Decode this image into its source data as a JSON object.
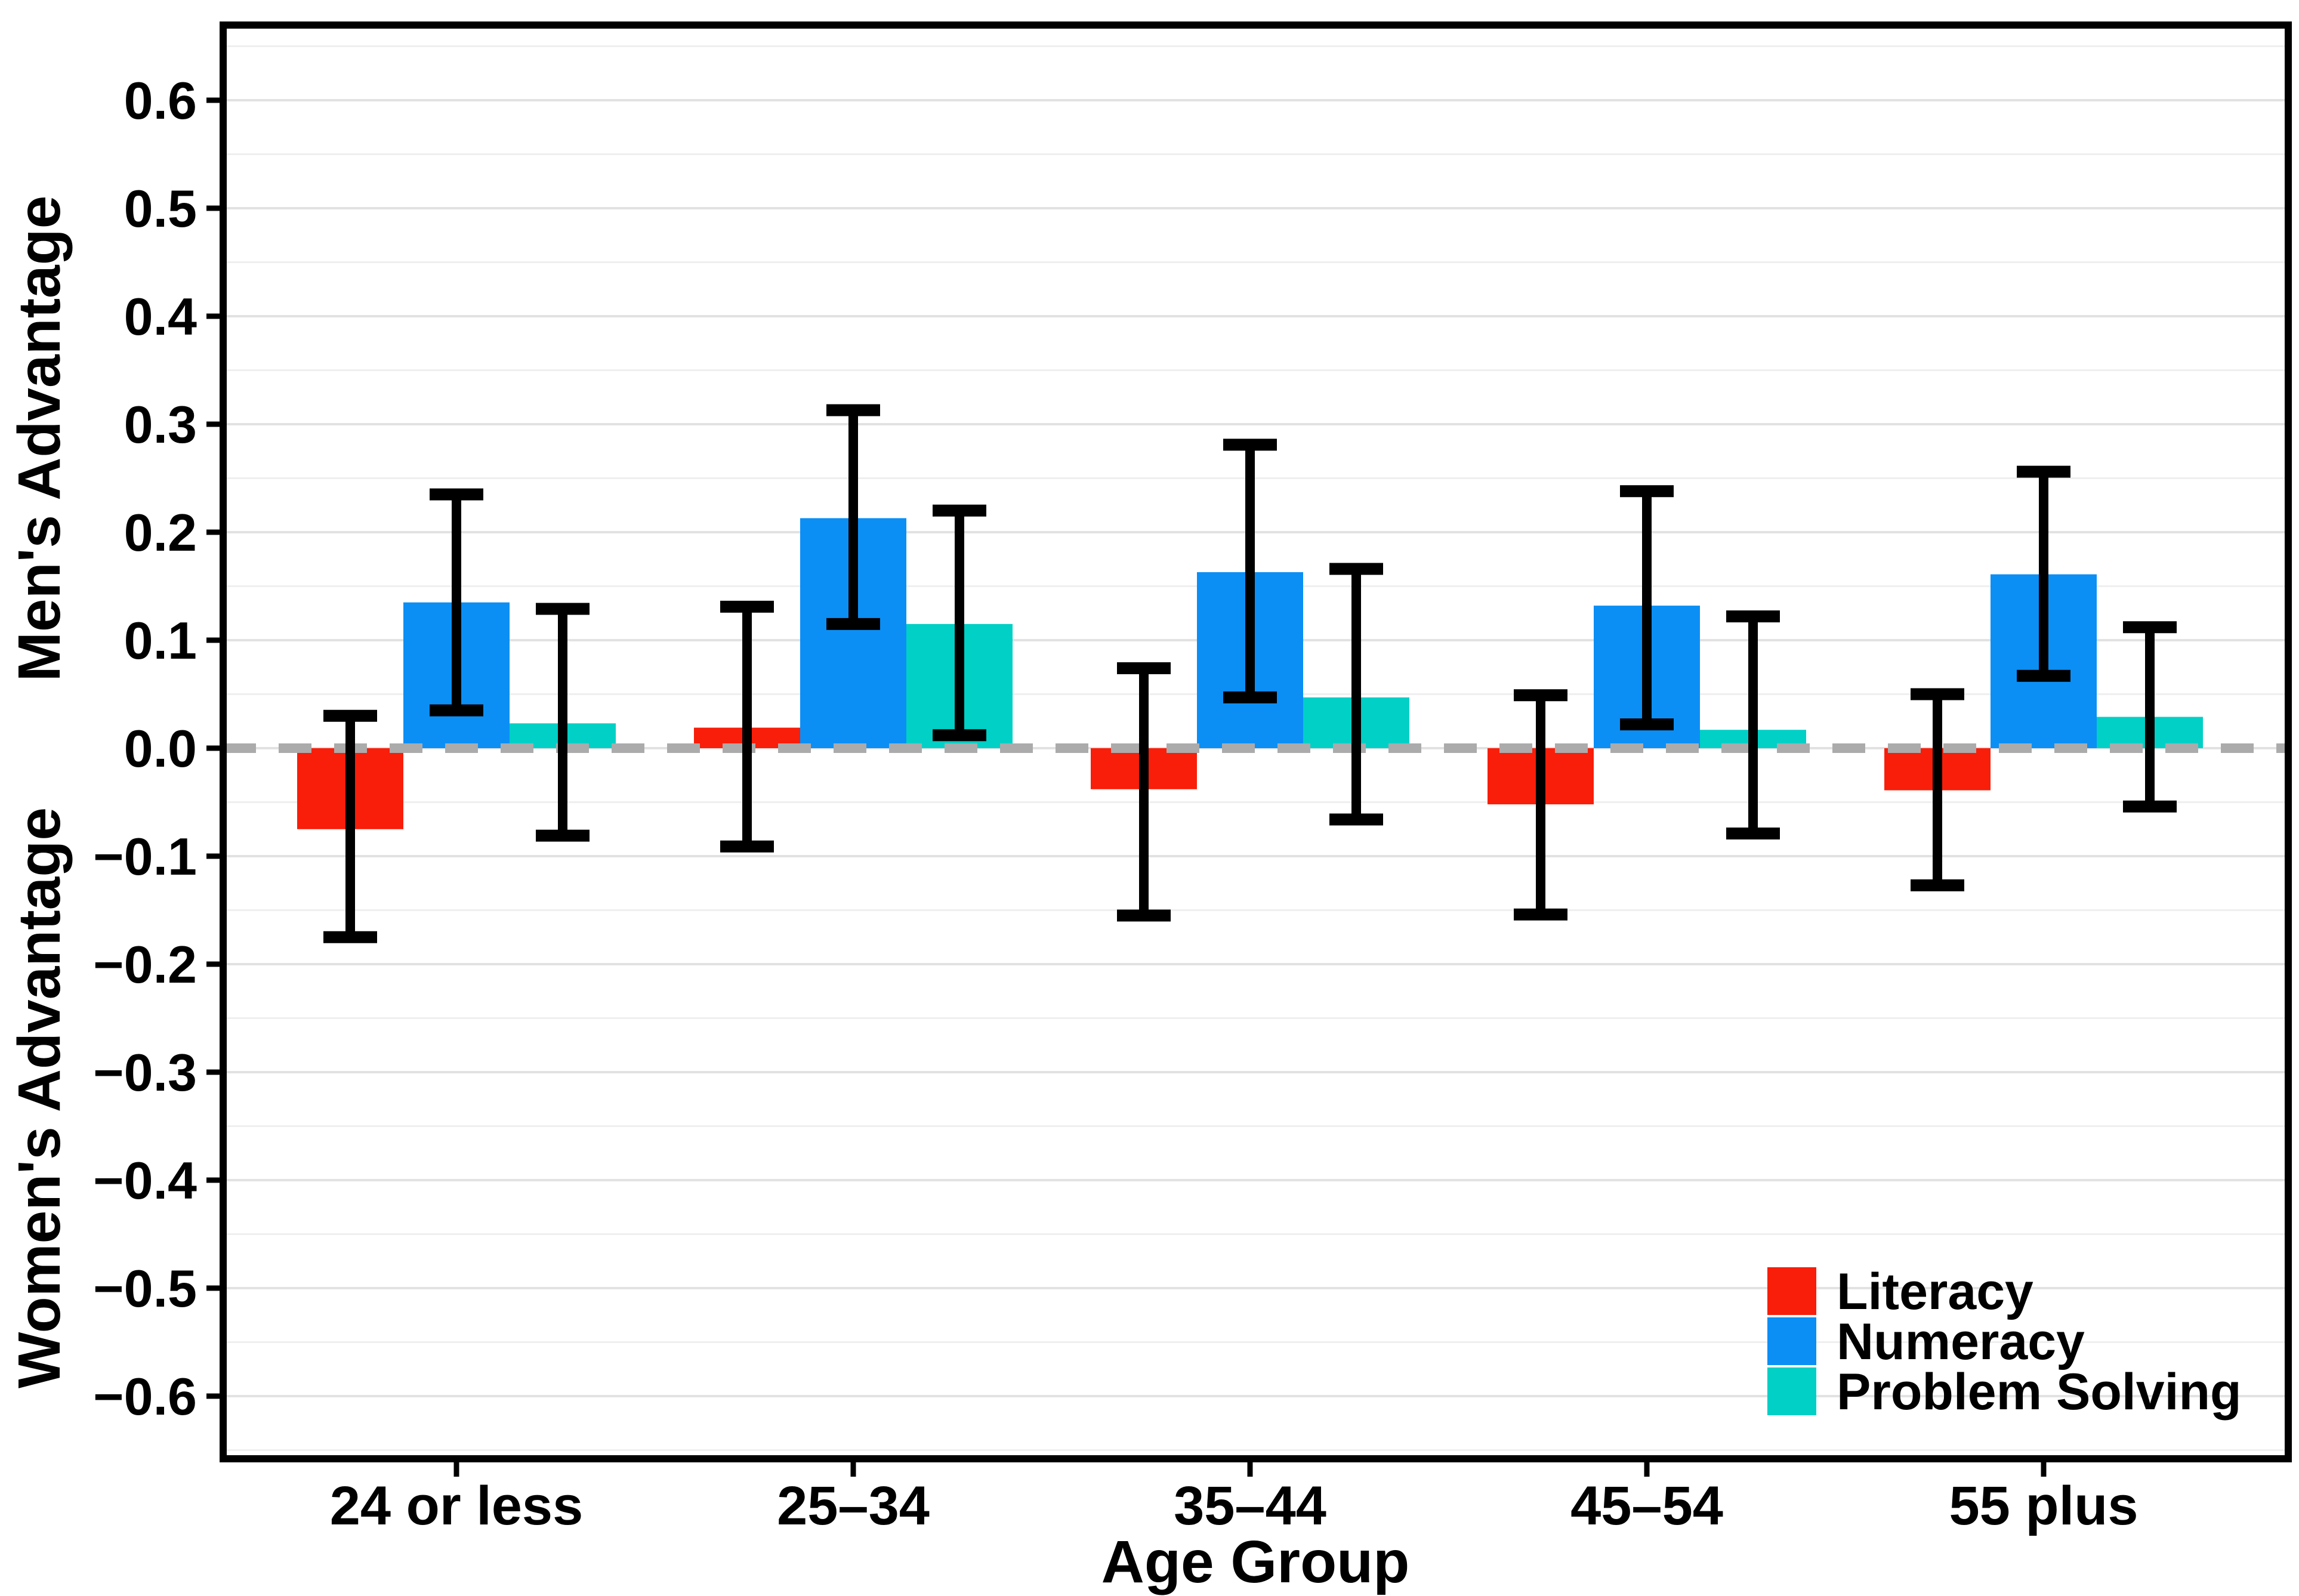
{
  "chart_data": {
    "type": "bar",
    "title": "",
    "xlabel": "Age Group",
    "ylabel_top": "Men's Advantage",
    "ylabel_bottom": "Women's Advantage",
    "categories": [
      "24 or less",
      "25–34",
      "35–44",
      "45–54",
      "55 plus"
    ],
    "ylim": [
      -0.65,
      0.65
    ],
    "grid": "on",
    "gridline_minor_step": 0.05,
    "yticks": [
      {
        "value": 0.6,
        "label": "0.6"
      },
      {
        "value": 0.5,
        "label": "0.5"
      },
      {
        "value": 0.4,
        "label": "0.4"
      },
      {
        "value": 0.3,
        "label": "0.3"
      },
      {
        "value": 0.2,
        "label": "0.2"
      },
      {
        "value": 0.1,
        "label": "0.1"
      },
      {
        "value": 0.0,
        "label": "0.0"
      },
      {
        "value": -0.1,
        "label": "−0.1"
      },
      {
        "value": -0.2,
        "label": "−0.2"
      },
      {
        "value": -0.3,
        "label": "−0.3"
      },
      {
        "value": -0.4,
        "label": "−0.4"
      },
      {
        "value": -0.5,
        "label": "−0.5"
      },
      {
        "value": -0.6,
        "label": "−0.6"
      }
    ],
    "zero_line": {
      "style": "dashed",
      "color": "#ABABAB"
    },
    "series": [
      {
        "name": "Literacy",
        "color": "#F81E0A",
        "values": [
          -0.075,
          0.019,
          -0.038,
          -0.052,
          -0.039
        ],
        "ci_low": [
          -0.175,
          -0.091,
          -0.155,
          -0.154,
          -0.127
        ],
        "ci_high": [
          0.03,
          0.131,
          0.074,
          0.049,
          0.05
        ]
      },
      {
        "name": "Numeracy",
        "color": "#0B8FF5",
        "values": [
          0.135,
          0.213,
          0.163,
          0.132,
          0.161
        ],
        "ci_low": [
          0.035,
          0.115,
          0.047,
          0.022,
          0.067
        ],
        "ci_high": [
          0.235,
          0.313,
          0.281,
          0.238,
          0.256
        ]
      },
      {
        "name": "Problem Solving",
        "color": "#00D0C6",
        "values": [
          0.023,
          0.115,
          0.047,
          0.017,
          0.029
        ],
        "ci_low": [
          -0.081,
          0.012,
          -0.066,
          -0.079,
          -0.054
        ],
        "ci_high": [
          0.129,
          0.22,
          0.166,
          0.122,
          0.112
        ]
      }
    ],
    "legend": {
      "position": "inside-bottom-right",
      "entries": [
        "Literacy",
        "Numeracy",
        "Problem Solving"
      ]
    },
    "colors": {
      "frame": "#000000",
      "gridline_major": "#E2E2E2",
      "gridline_minor": "#EFEFEF",
      "error_bar": "#000000",
      "background": "#FFFFFF"
    }
  }
}
